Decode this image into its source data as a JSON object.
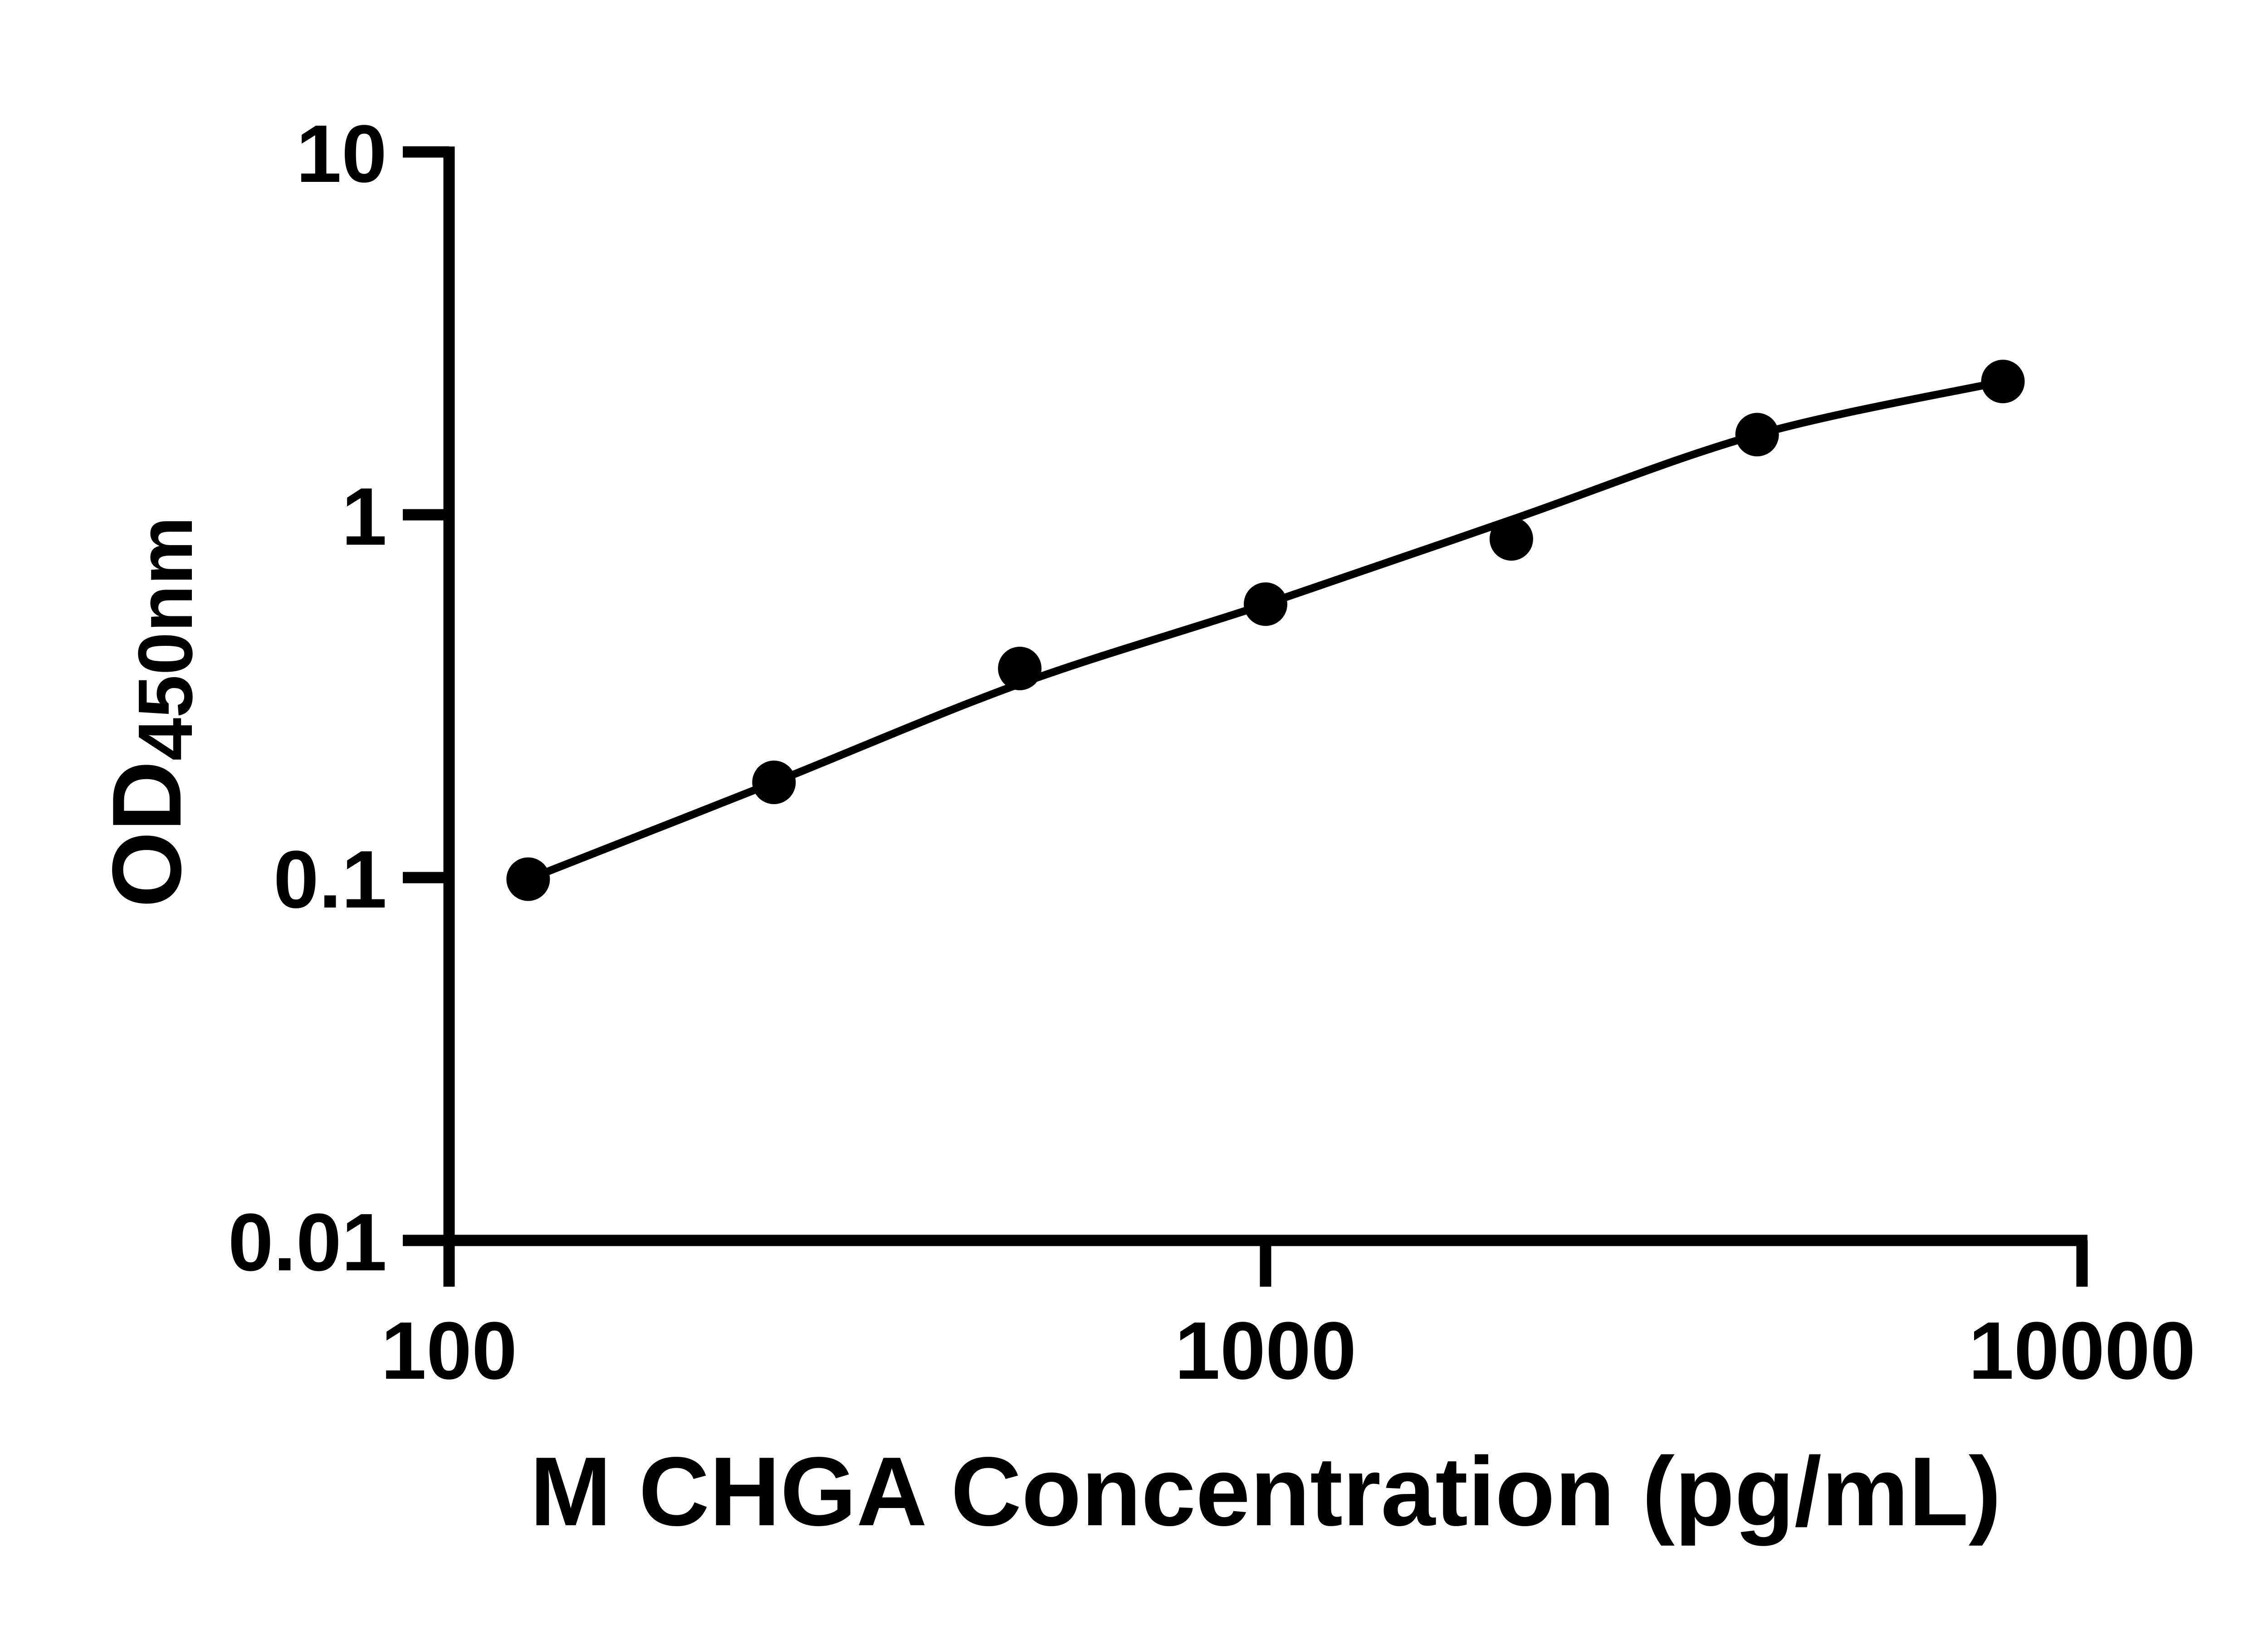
{
  "figure": {
    "background_color": "#ffffff",
    "ink_color": "#000000"
  },
  "chart_data": {
    "type": "scatter",
    "title": "",
    "xlabel": "M CHGA Concentration (pg/mL)",
    "ylabel": "OD",
    "ylabel_subscript": "450nm",
    "x_scale": "log",
    "y_scale": "log",
    "xlim": [
      100,
      10000
    ],
    "ylim": [
      0.01,
      10
    ],
    "grid": false,
    "legend": false,
    "x_ticks": [
      {
        "value": 100,
        "label": "100"
      },
      {
        "value": 1000,
        "label": "1000"
      },
      {
        "value": 10000,
        "label": "10000"
      }
    ],
    "y_ticks": [
      {
        "value": 10,
        "label": "10"
      },
      {
        "value": 1,
        "label": "1"
      },
      {
        "value": 0.1,
        "label": "0.1"
      },
      {
        "value": 0.01,
        "label": "0.01"
      }
    ],
    "series": [
      {
        "name": "standard-points",
        "kind": "scatter",
        "marker": "filled-circle",
        "color": "#000000",
        "x": [
          125,
          250,
          500,
          1000,
          2000,
          4000,
          8000
        ],
        "y": [
          0.099,
          0.183,
          0.377,
          0.567,
          0.858,
          1.663,
          2.33
        ]
      },
      {
        "name": "fitted-curve",
        "kind": "line",
        "color": "#000000",
        "x": [
          125,
          250,
          500,
          1000,
          2000,
          4000,
          8000
        ],
        "y": [
          0.099,
          0.183,
          0.342,
          0.567,
          0.969,
          1.663,
          2.33
        ]
      }
    ]
  }
}
